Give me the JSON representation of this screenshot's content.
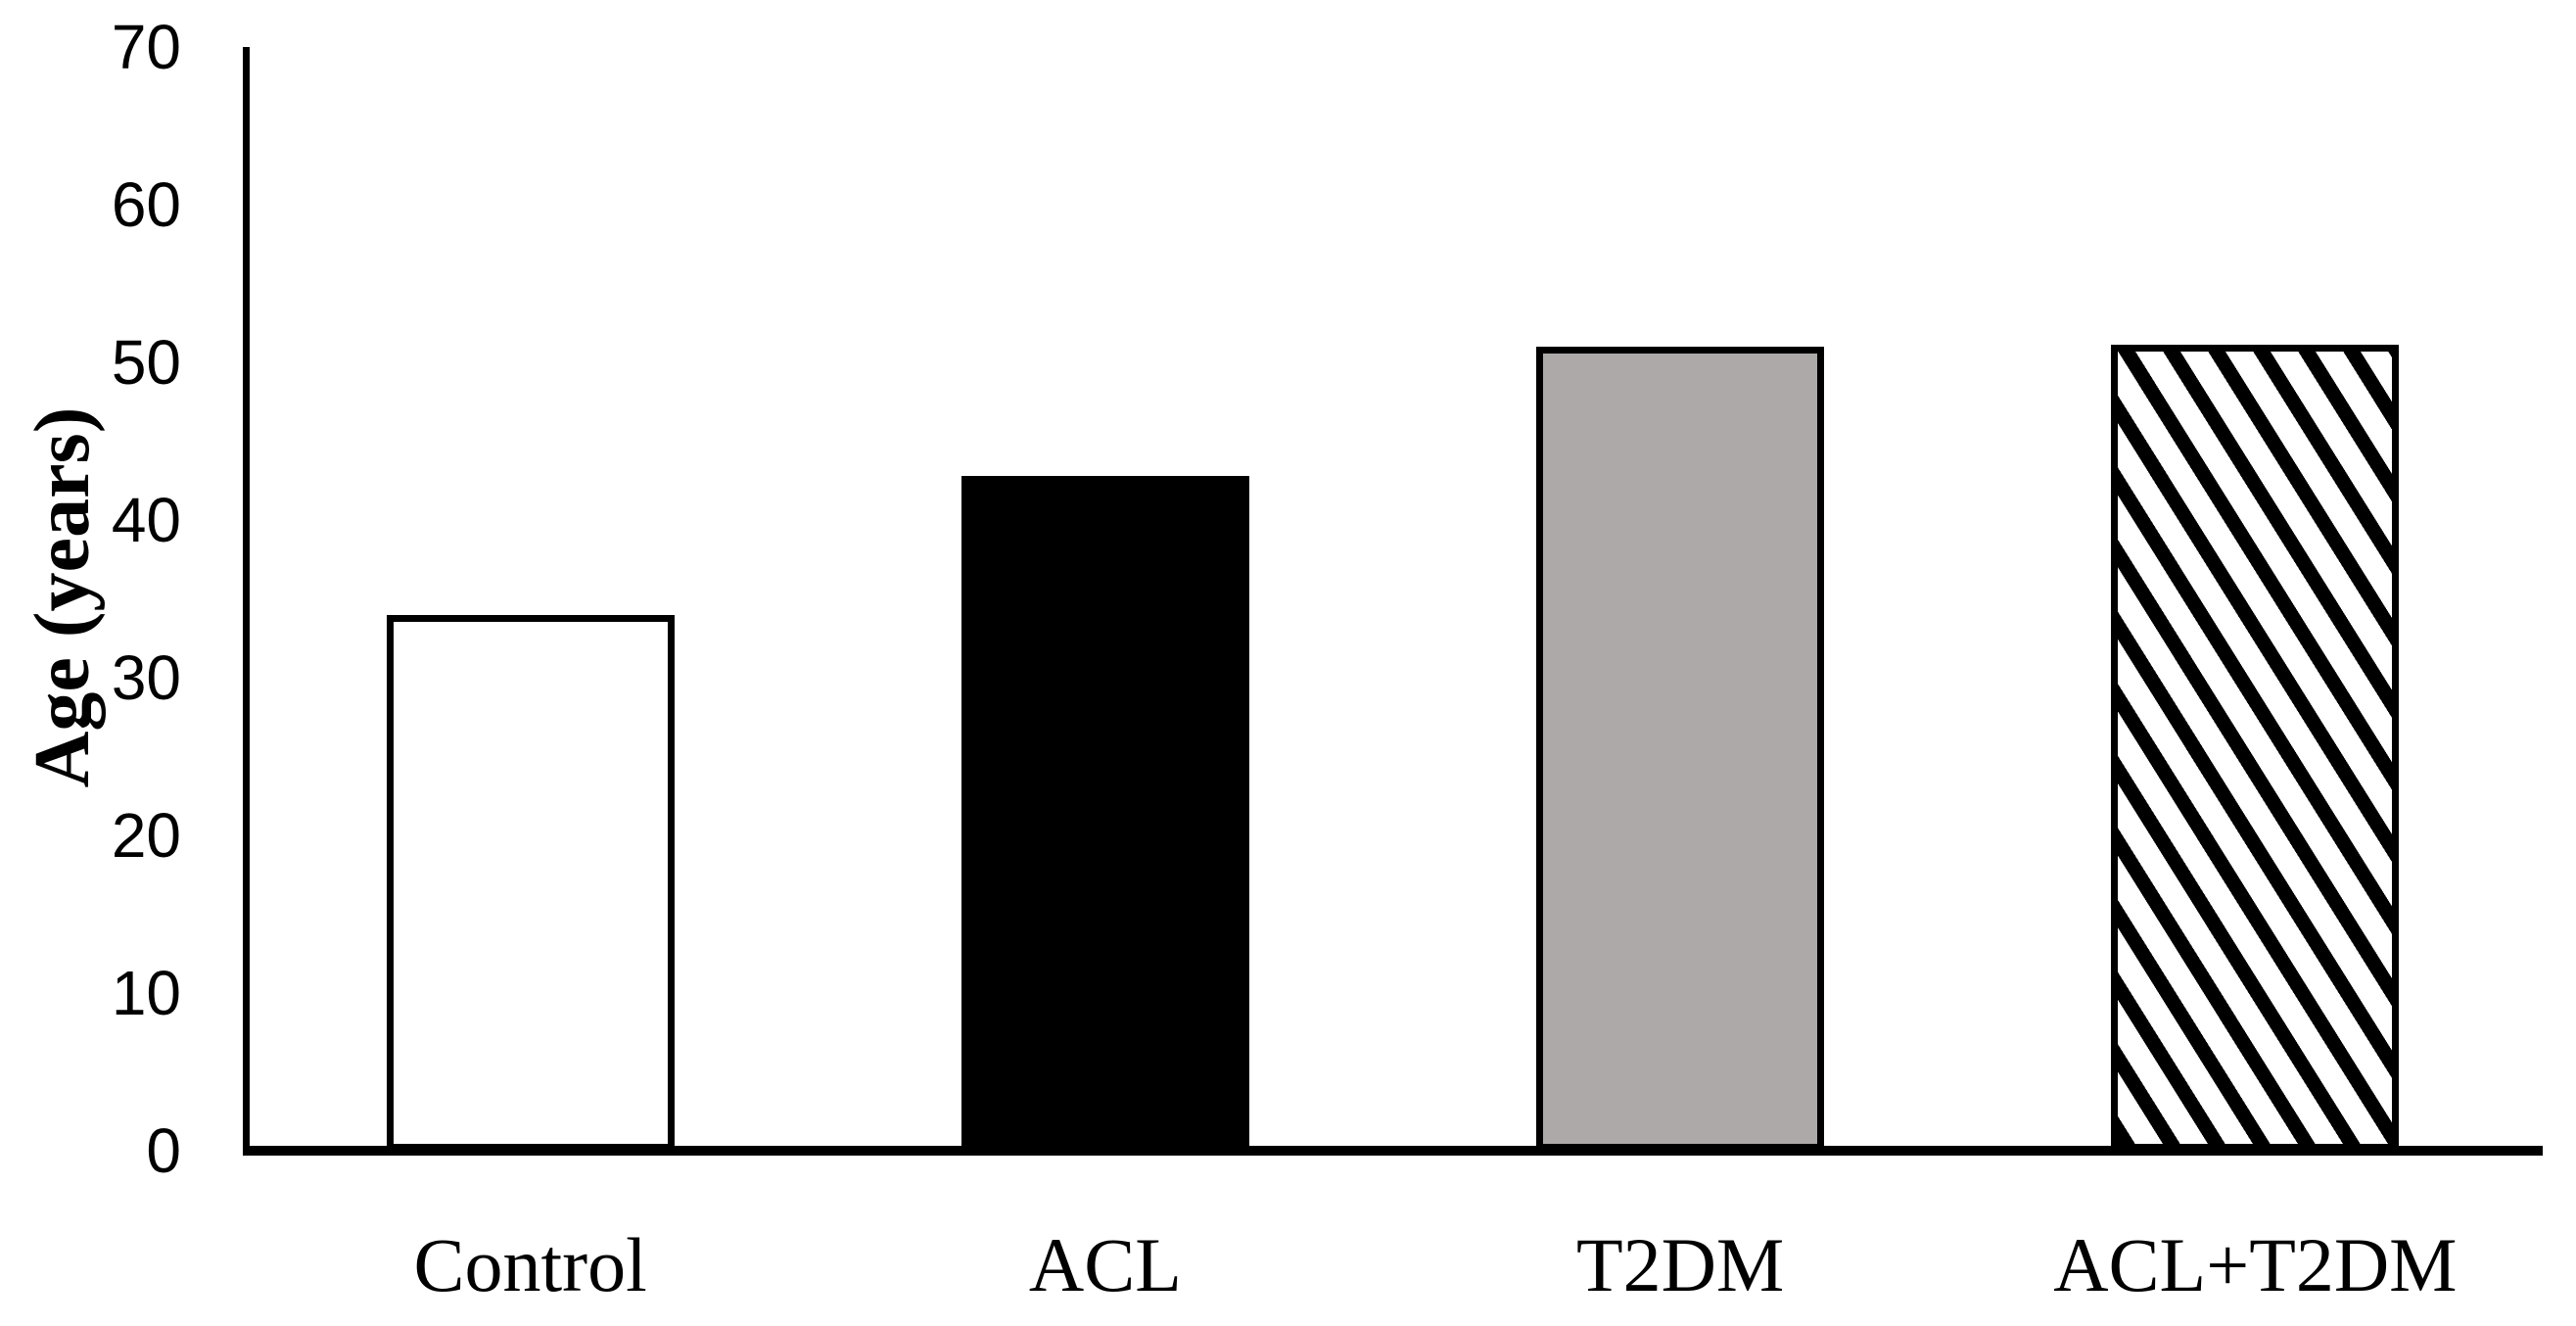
{
  "figure": {
    "background": "#FFFFFF"
  },
  "chart_data": {
    "type": "bar",
    "title": "",
    "xlabel": "",
    "ylabel": "Age (years)",
    "categories": [
      "Control",
      "ACL",
      "T2DM",
      "ACL+T2DM"
    ],
    "values": [
      34,
      42.8,
      51,
      51.1
    ],
    "ylim": [
      0,
      70
    ],
    "ytick_interval": 10,
    "yticks": [
      0,
      10,
      20,
      30,
      40,
      50,
      60,
      70
    ],
    "ytick_labels": [
      "0",
      "10",
      "20",
      "30",
      "40",
      "50",
      "60",
      "70"
    ],
    "grid": false,
    "legend": "none",
    "tick_marks": "none",
    "bar_styles": [
      {
        "category": "Control",
        "pattern": "solid",
        "fill": "#FFFFFF",
        "border": "#000000"
      },
      {
        "category": "ACL",
        "pattern": "solid",
        "fill": "#000000",
        "border": "#000000"
      },
      {
        "category": "T2DM",
        "pattern": "solid",
        "fill": "#ACA9A8",
        "border": "#000000"
      },
      {
        "category": "ACL+T2DM",
        "pattern": "diagonal-stripes-black",
        "fill": "#FFFFFF",
        "border": "#000000"
      }
    ],
    "colors": {
      "axis": "#000000",
      "text": "#000000",
      "gray_fill": "#ACA9A8",
      "hatch_stripe": "#000000",
      "background": "#FFFFFF"
    }
  }
}
